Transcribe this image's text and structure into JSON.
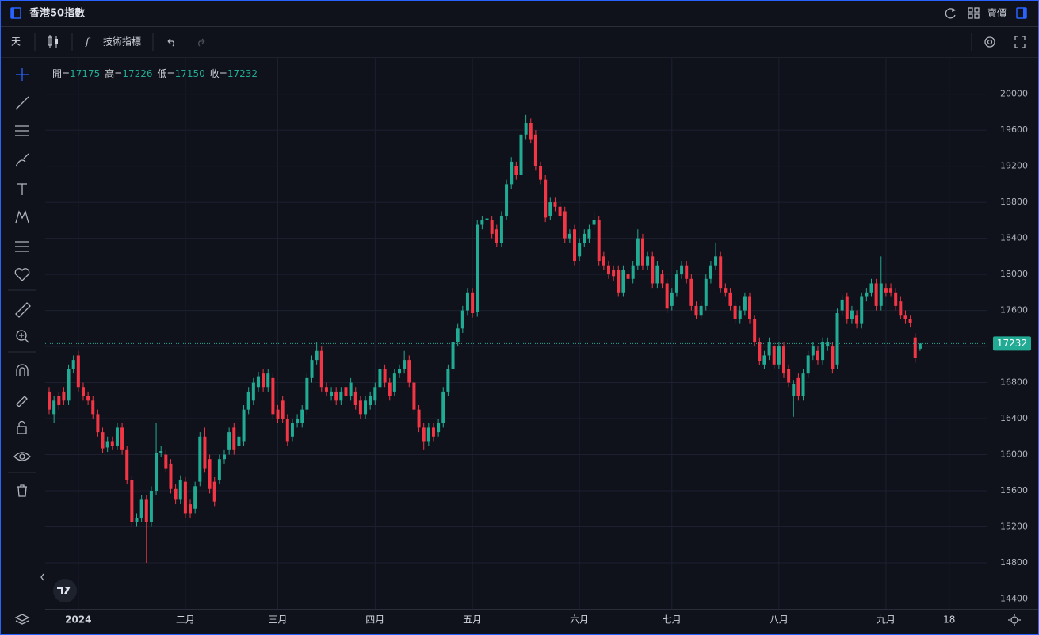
{
  "ui": {
    "title": "香港50指數",
    "price_type": "賣價",
    "interval": "天",
    "indicators": "技術指標",
    "ohlc_labels": [
      "開=",
      "高=",
      "低=",
      "收="
    ]
  },
  "chart_data": {
    "type": "candlestick",
    "categories": [
      null,
      null,
      null,
      null,
      null,
      null,
      "2024",
      null,
      null,
      null,
      null,
      null,
      null,
      null,
      null,
      null,
      null,
      null,
      null,
      null,
      null,
      null,
      null,
      null,
      null,
      null,
      null,
      null,
      "二月",
      null,
      null,
      null,
      null,
      null,
      null,
      null,
      null,
      null,
      null,
      null,
      null,
      null,
      null,
      null,
      null,
      null,
      null,
      "三月",
      null,
      null,
      null,
      null,
      null,
      null,
      null,
      null,
      null,
      null,
      null,
      null,
      null,
      null,
      null,
      null,
      null,
      null,
      null,
      "四月",
      null,
      null,
      null,
      null,
      null,
      null,
      null,
      null,
      null,
      null,
      null,
      null,
      null,
      null,
      null,
      null,
      null,
      null,
      null,
      "五月",
      null,
      null,
      null,
      null,
      null,
      null,
      null,
      null,
      null,
      null,
      null,
      null,
      null,
      null,
      null,
      null,
      null,
      null,
      null,
      null,
      null,
      "六月",
      null,
      null,
      null,
      null,
      null,
      null,
      null,
      null,
      null,
      null,
      null,
      null,
      null,
      null,
      null,
      null,
      null,
      null,
      "七月",
      null,
      null,
      null,
      null,
      null,
      null,
      null,
      null,
      null,
      null,
      null,
      null,
      null,
      null,
      null,
      null,
      null,
      null,
      null,
      null,
      null,
      "八月",
      null,
      null,
      null,
      null,
      null,
      null,
      null,
      null,
      null,
      null,
      null,
      null,
      null,
      null,
      null,
      null,
      null,
      null,
      null,
      null,
      null,
      "九月",
      null,
      null,
      null,
      null,
      null,
      null,
      null,
      null,
      null,
      null,
      null,
      null,
      "18"
    ],
    "open": [
      16700,
      16450,
      16650,
      16700,
      16600,
      16950,
      17100,
      16750,
      16650,
      16600,
      16450,
      16250,
      16080,
      16150,
      16100,
      16300,
      16050,
      15720,
      15250,
      15300,
      15500,
      15250,
      15600,
      16020,
      16000,
      15900,
      15620,
      15500,
      15700,
      15450,
      15400,
      15700,
      16200,
      15950,
      15700,
      15720,
      15950,
      16050,
      16300,
      16100,
      16150,
      16500,
      16600,
      16750,
      16900,
      16750,
      16850,
      16500,
      16600,
      16400,
      16200,
      16350,
      16350,
      16500,
      16850,
      17050,
      17150,
      16750,
      16650,
      16700,
      16600,
      16750,
      16650,
      16700,
      16600,
      16450,
      16550,
      16600,
      16750,
      16950,
      16800,
      16700,
      16900,
      16950,
      17050,
      16800,
      16500,
      16300,
      16150,
      16300,
      16250,
      16350,
      16700,
      16950,
      17250,
      17400,
      17600,
      17800,
      17580,
      18550,
      18600,
      18600,
      18500,
      18350,
      18650,
      19000,
      19200,
      19100,
      19550,
      19680,
      19550,
      19200,
      19050,
      18650,
      18800,
      18750,
      18700,
      18400,
      18500,
      18200,
      18350,
      18400,
      18550,
      18600,
      18200,
      18100,
      18050,
      18050,
      17800,
      18000,
      17950,
      18100,
      18400,
      18100,
      18200,
      17900,
      18000,
      17900,
      17650,
      17800,
      18000,
      18100,
      17950,
      17650,
      17550,
      17650,
      17950,
      18100,
      18200,
      17850,
      17800,
      17650,
      17500,
      17600,
      17750,
      17500,
      17250,
      17000,
      17100,
      17200,
      17000,
      17200,
      16950,
      16650,
      16850,
      16650,
      16900,
      17100,
      17150,
      17050,
      17200,
      17200,
      17000,
      17600,
      17750,
      17500,
      17550,
      17450,
      17750,
      17800,
      17900,
      17650,
      17850,
      17850,
      17800,
      17700,
      17550,
      17500,
      17300,
      17175,
      null,
      null,
      null,
      null,
      null,
      null
    ],
    "high": [
      16750,
      16650,
      16700,
      16750,
      17000,
      17100,
      17150,
      16800,
      16700,
      16650,
      16500,
      16300,
      16200,
      16200,
      16350,
      16350,
      16100,
      15770,
      15350,
      15550,
      15550,
      15650,
      16350,
      16100,
      16050,
      15950,
      15670,
      15770,
      15750,
      15500,
      15700,
      16250,
      16300,
      16000,
      15750,
      16000,
      16050,
      16300,
      16350,
      16250,
      16550,
      16750,
      16850,
      16920,
      16950,
      16950,
      16900,
      16550,
      16650,
      16450,
      16400,
      16450,
      16550,
      16900,
      17100,
      17250,
      17200,
      16800,
      16750,
      16750,
      16750,
      16800,
      16850,
      16750,
      16650,
      16650,
      16700,
      16800,
      17000,
      17000,
      16850,
      16950,
      17000,
      17150,
      17100,
      16850,
      16550,
      16350,
      16350,
      16350,
      16400,
      16750,
      17000,
      17300,
      17450,
      17650,
      17850,
      17850,
      18600,
      18650,
      18670,
      18650,
      18550,
      18700,
      19050,
      19300,
      19250,
      19600,
      19770,
      19730,
      19600,
      19250,
      19100,
      18850,
      18850,
      18800,
      18750,
      18500,
      18550,
      18400,
      18500,
      18550,
      18700,
      18650,
      18250,
      18150,
      18100,
      18100,
      18100,
      18050,
      18150,
      18500,
      18450,
      18250,
      18250,
      18150,
      18050,
      17950,
      17850,
      18050,
      18150,
      18150,
      18000,
      17700,
      17700,
      18000,
      18150,
      18350,
      18250,
      17900,
      17850,
      17700,
      17650,
      17800,
      17800,
      17550,
      17300,
      17150,
      17300,
      17250,
      17250,
      17250,
      17000,
      16830,
      16900,
      16950,
      17150,
      17250,
      17200,
      17300,
      17300,
      17250,
      17620,
      17770,
      17800,
      17650,
      17600,
      17800,
      17850,
      17950,
      17950,
      18200,
      17900,
      17900,
      17850,
      17750,
      17600,
      17550,
      17350,
      17226,
      null,
      null,
      null,
      null,
      null,
      null
    ],
    "low": [
      16450,
      16350,
      16500,
      16550,
      16550,
      16900,
      16700,
      16600,
      16550,
      16400,
      16200,
      16020,
      16030,
      16050,
      16050,
      16000,
      15670,
      15200,
      15200,
      15250,
      14800,
      15200,
      15550,
      15970,
      15800,
      15570,
      15450,
      15450,
      15300,
      15300,
      15350,
      15650,
      15800,
      15570,
      15430,
      15670,
      15900,
      16000,
      16000,
      16050,
      16100,
      16450,
      16550,
      16700,
      16700,
      16700,
      16400,
      16350,
      16350,
      16100,
      16150,
      16300,
      16300,
      16450,
      16800,
      17000,
      16700,
      16650,
      16600,
      16550,
      16550,
      16600,
      16600,
      16500,
      16400,
      16400,
      16500,
      16550,
      16700,
      16750,
      16600,
      16650,
      16850,
      16900,
      16750,
      16450,
      16250,
      16050,
      16100,
      16150,
      16200,
      16300,
      16650,
      16900,
      17200,
      17350,
      17550,
      17520,
      17530,
      18500,
      18550,
      18400,
      18300,
      18300,
      18600,
      18950,
      19050,
      19050,
      19500,
      19450,
      19150,
      19000,
      18580,
      18600,
      18700,
      18600,
      18350,
      18350,
      18100,
      18150,
      18300,
      18350,
      18500,
      18100,
      18050,
      17950,
      17930,
      17750,
      17750,
      17900,
      17900,
      18050,
      18050,
      18050,
      17850,
      17850,
      17850,
      17570,
      17600,
      17750,
      17950,
      17900,
      17600,
      17500,
      17500,
      17600,
      17900,
      18050,
      17800,
      17750,
      17600,
      17450,
      17450,
      17550,
      17450,
      17200,
      16990,
      16950,
      17050,
      16950,
      16950,
      16850,
      16750,
      16420,
      16600,
      16600,
      16850,
      17050,
      17000,
      17000,
      17150,
      16900,
      16950,
      17550,
      17450,
      17450,
      17400,
      17400,
      17700,
      17750,
      17600,
      17600,
      17750,
      17750,
      17600,
      17500,
      17450,
      17410,
      17020,
      17150,
      null,
      null,
      null,
      null,
      null,
      null
    ],
    "close": [
      16500,
      16600,
      16550,
      16600,
      16950,
      17050,
      16750,
      16650,
      16600,
      16450,
      16250,
      16070,
      16150,
      16100,
      16300,
      16050,
      15720,
      15250,
      15300,
      15500,
      15250,
      15600,
      16020,
      16040,
      15850,
      15620,
      15500,
      15720,
      15350,
      15350,
      15650,
      16200,
      15850,
      15620,
      15480,
      15950,
      16000,
      16250,
      16050,
      16200,
      16500,
      16700,
      16800,
      16870,
      16750,
      16900,
      16450,
      16400,
      16400,
      16150,
      16350,
      16400,
      16500,
      16850,
      17050,
      17150,
      16750,
      16700,
      16700,
      16600,
      16700,
      16650,
      16800,
      16550,
      16450,
      16600,
      16650,
      16750,
      16950,
      16800,
      16650,
      16900,
      16950,
      17050,
      16800,
      16500,
      16300,
      16150,
      16300,
      16200,
      16350,
      16700,
      16950,
      17250,
      17400,
      17600,
      17800,
      17570,
      18550,
      18600,
      18620,
      18450,
      18350,
      18650,
      19000,
      19250,
      19100,
      19550,
      19680,
      19500,
      19200,
      19050,
      18630,
      18800,
      18750,
      18650,
      18400,
      18450,
      18150,
      18350,
      18450,
      18500,
      18600,
      18150,
      18100,
      18000,
      17980,
      17800,
      18050,
      17950,
      18100,
      18400,
      18100,
      18200,
      17900,
      18100,
      17900,
      17620,
      17800,
      18000,
      18100,
      17950,
      17650,
      17550,
      17650,
      17950,
      18100,
      18200,
      17850,
      17800,
      17650,
      17500,
      17600,
      17750,
      17500,
      17250,
      17040,
      17100,
      17250,
      17000,
      17200,
      16900,
      16800,
      16780,
      16650,
      16900,
      17100,
      17200,
      17050,
      17250,
      17250,
      16950,
      17570,
      17720,
      17500,
      17600,
      17450,
      17750,
      17800,
      17900,
      17650,
      17900,
      17800,
      17800,
      17650,
      17550,
      17500,
      17460,
      17070,
      17232,
      null,
      null,
      null,
      null,
      null,
      null
    ],
    "up_color": "#22ab94",
    "down_color": "#f23645",
    "ylim": [
      14290,
      20410
    ],
    "yticks": [
      14400,
      14800,
      15200,
      15600,
      16000,
      16400,
      16800,
      17200,
      17600,
      18000,
      18400,
      18800,
      19200,
      19600,
      20000
    ],
    "grid": true,
    "last_price_line": true
  }
}
